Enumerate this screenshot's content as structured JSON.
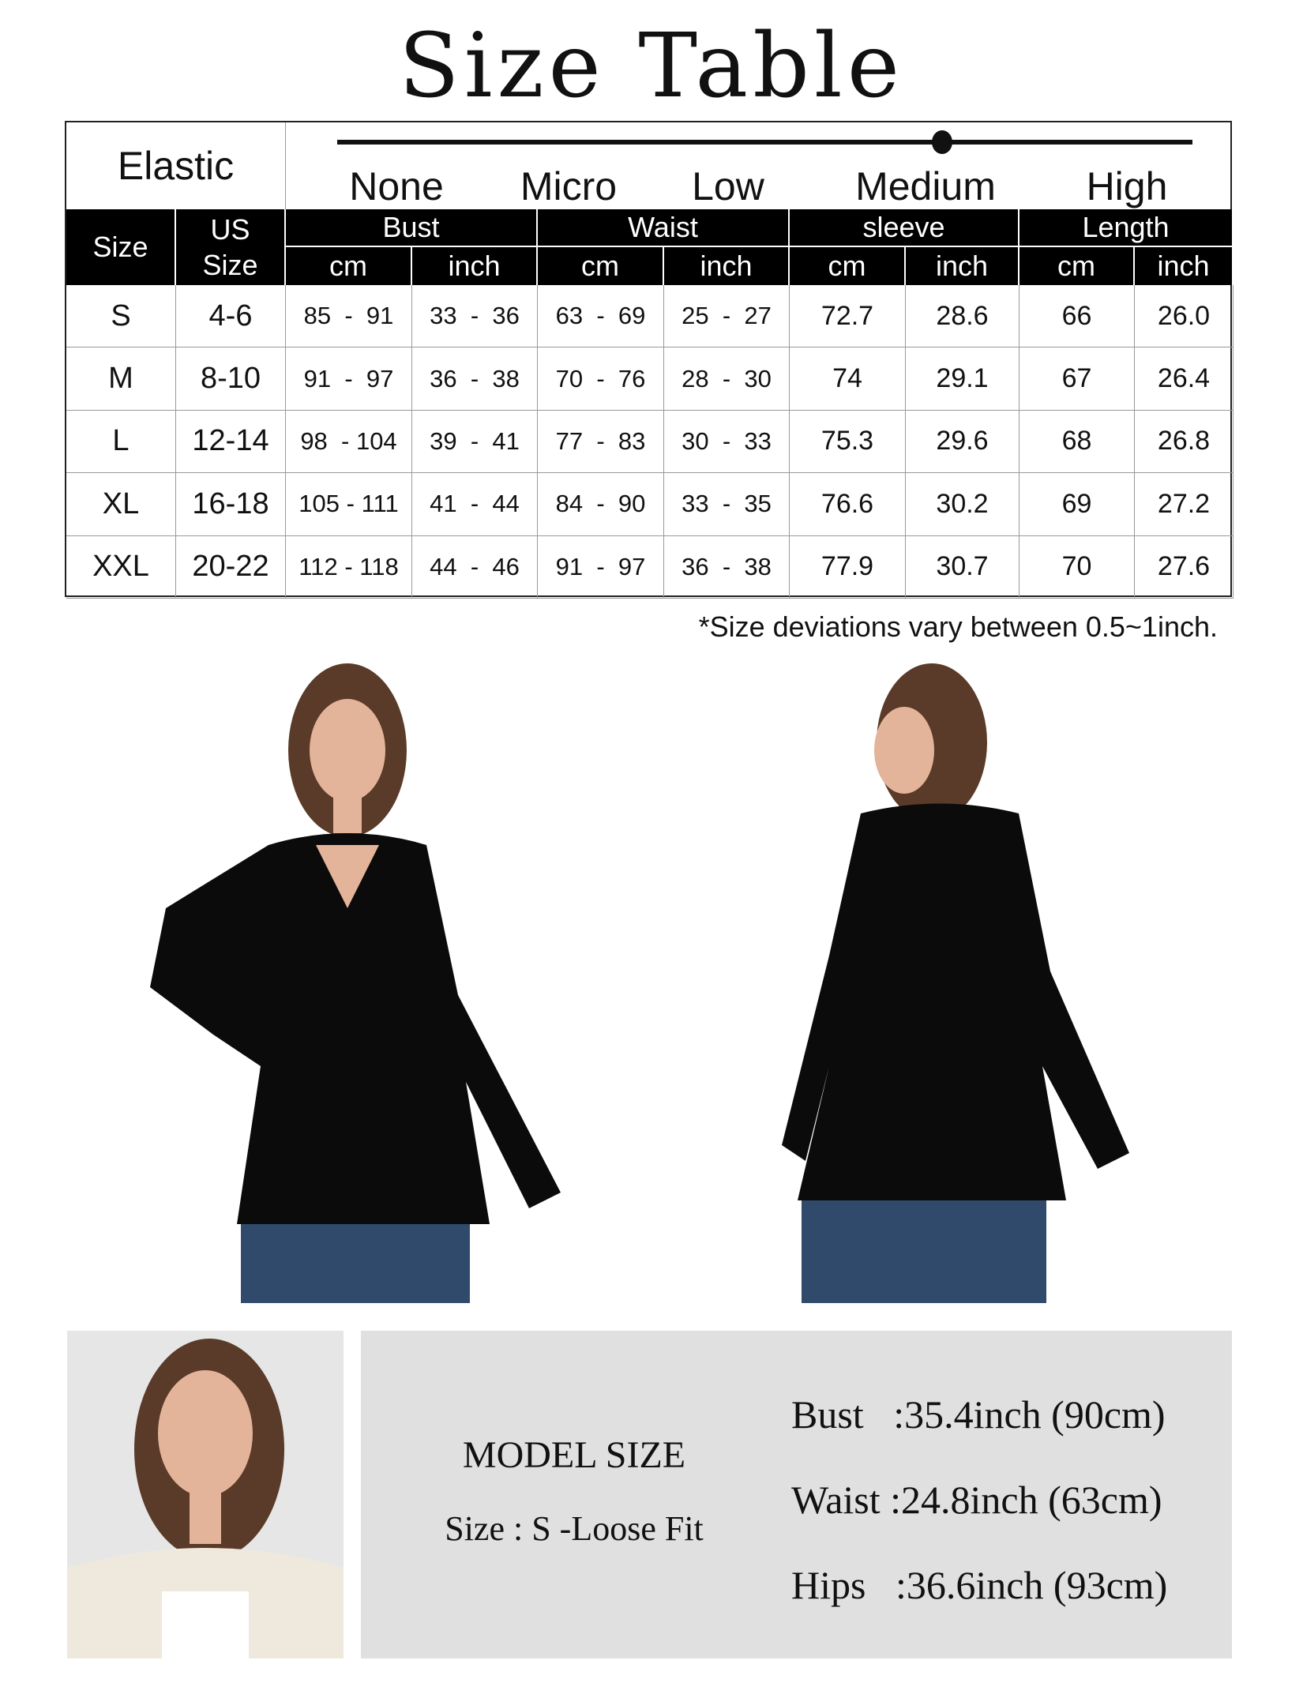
{
  "title": "Size Table",
  "elastic": {
    "label": "Elastic",
    "levels": [
      "None",
      "Micro",
      "Low",
      "Medium",
      "High"
    ],
    "selected": "Medium"
  },
  "table": {
    "headers": {
      "size": "Size",
      "us_size": "US Size",
      "groups": [
        "Bust",
        "Waist",
        "sleeve",
        "Length"
      ],
      "units": [
        "cm",
        "inch",
        "cm",
        "inch",
        "cm",
        "inch",
        "cm",
        "inch"
      ]
    },
    "rows": [
      [
        "S",
        "4-6",
        "85  -  91",
        "33  -  36",
        "63  -  69",
        "25  -  27",
        "72.7",
        "28.6",
        "66",
        "26.0"
      ],
      [
        "M",
        "8-10",
        "91  -  97",
        "36  -  38",
        "70  -  76",
        "28  -  30",
        "74",
        "29.1",
        "67",
        "26.4"
      ],
      [
        "L",
        "12-14",
        "98  - 104",
        "39  -  41",
        "77  -  83",
        "30  -  33",
        "75.3",
        "29.6",
        "68",
        "26.8"
      ],
      [
        "XL",
        "16-18",
        "105 - 111",
        "41  -  44",
        "84  -  90",
        "33  -  35",
        "76.6",
        "30.2",
        "69",
        "27.2"
      ],
      [
        "XXL",
        "20-22",
        "112 - 118",
        "44  -  46",
        "91  -  97",
        "36  -  38",
        "77.9",
        "30.7",
        "70",
        "27.6"
      ]
    ]
  },
  "note": "*Size deviations vary between 0.5~1inch.",
  "model": {
    "heading": "MODEL SIZE",
    "size": "Size : S -Loose Fit",
    "measurements": [
      "Bust   :35.4inch (90cm)",
      "Waist :24.8inch (63cm)",
      "Hips   :36.6inch (93cm)"
    ]
  },
  "colors": {
    "header_bg": "#000000",
    "panel_bg": "#e0e0e0",
    "top": "#0b0b0b",
    "jeans": "#2f4a6b",
    "skin": "#e3b49a",
    "hair": "#5a3a28"
  }
}
